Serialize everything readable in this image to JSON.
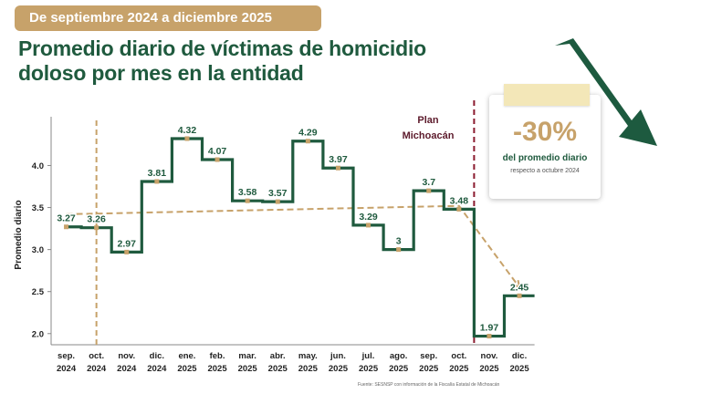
{
  "banner": "De septiembre 2024 a diciembre 2025",
  "title": "Promedio diario de víctimas de homicidio doloso por mes en la entidad",
  "plan_label": "Plan Michoacán",
  "badge": {
    "percent": "-30%",
    "line1": "del promedio diario",
    "line2": "respecto a octubre 2024"
  },
  "source": "Fuente: SESNSP con información de la Fiscalía Estatal de Michoacán",
  "colors": {
    "series": "#1f5a3e",
    "trend": "#c7a26a",
    "marker": "#c7a26a",
    "plan_line": "#8b1a2e",
    "banner": "#c7a26a"
  },
  "chart_data": {
    "type": "line",
    "step": true,
    "ylabel": "Promedio diario",
    "ylim": [
      1.9,
      4.45
    ],
    "yticks": [
      "2.0",
      "2.5",
      "3.0",
      "3.5",
      "4.0"
    ],
    "categories": [
      [
        "sep.",
        "2024"
      ],
      [
        "oct.",
        "2024"
      ],
      [
        "nov.",
        "2024"
      ],
      [
        "dic.",
        "2024"
      ],
      [
        "ene.",
        "2025"
      ],
      [
        "feb.",
        "2025"
      ],
      [
        "mar.",
        "2025"
      ],
      [
        "abr.",
        "2025"
      ],
      [
        "may.",
        "2025"
      ],
      [
        "jun.",
        "2025"
      ],
      [
        "jul.",
        "2025"
      ],
      [
        "ago.",
        "2025"
      ],
      [
        "sep.",
        "2025"
      ],
      [
        "oct.",
        "2025"
      ],
      [
        "nov.",
        "2025"
      ],
      [
        "dic.",
        "2025"
      ]
    ],
    "values": [
      3.27,
      3.26,
      2.97,
      3.81,
      4.32,
      4.07,
      3.58,
      3.57,
      4.29,
      3.97,
      3.29,
      3.0,
      3.7,
      3.48,
      1.97,
      2.45
    ],
    "labels": [
      "3.27",
      "3.26",
      "2.97",
      "3.81",
      "4.32",
      "4.07",
      "3.58",
      "3.57",
      "4.29",
      "3.97",
      "3.29",
      "3",
      "3.7",
      "3.48",
      "1.97",
      "2.45"
    ],
    "reference_month": "oct. 2024",
    "plan_start_between": [
      "oct. 2025",
      "nov. 2025"
    ],
    "trend_points": [
      {
        "x": "sep. 2024",
        "y": 3.42
      },
      {
        "x": "oct. 2025",
        "y": 3.52
      },
      {
        "x": "dic. 2025",
        "y": 2.55
      }
    ]
  }
}
